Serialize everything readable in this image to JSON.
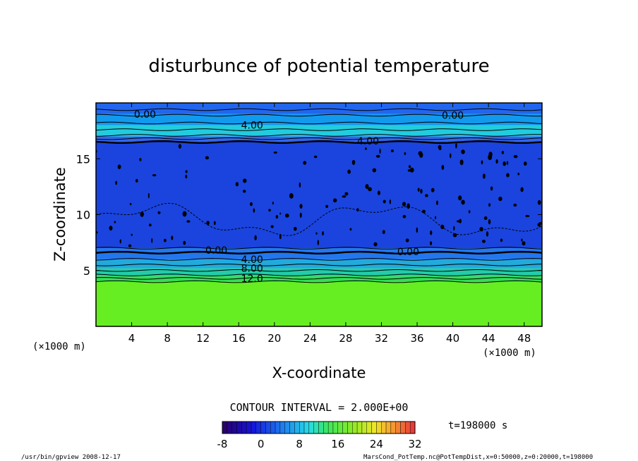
{
  "chart_data": {
    "type": "heatmap",
    "title": "disturbunce of potential temperature",
    "xlabel": "X-coordinate",
    "ylabel": "Z-coordinate",
    "x_unit": "(×1000 m)",
    "z_unit": "(×1000 m)",
    "xlim": [
      0,
      50
    ],
    "ylim": [
      0,
      20
    ],
    "x_ticks": [
      4,
      8,
      12,
      16,
      20,
      24,
      28,
      32,
      36,
      40,
      44,
      48
    ],
    "y_ticks": [
      5,
      10,
      15
    ],
    "contour_interval_label": "CONTOUR INTERVAL = 2.000E+00",
    "time_label": "t=198000 s",
    "colorbar": {
      "min": -8,
      "max": 32,
      "ticks": [
        -8,
        0,
        8,
        16,
        24,
        32
      ]
    },
    "contour_labels": [
      {
        "text": "0.00",
        "x": 5.5,
        "z": 19.0
      },
      {
        "text": "4.00",
        "x": 17.5,
        "z": 18.0
      },
      {
        "text": "0.00",
        "x": 40.0,
        "z": 18.9
      },
      {
        "text": "4.00",
        "x": 30.5,
        "z": 16.6
      },
      {
        "text": "0.00",
        "x": 13.5,
        "z": 6.8
      },
      {
        "text": "0.00",
        "x": 35.0,
        "z": 6.7
      },
      {
        "text": "4.00",
        "x": 17.5,
        "z": 6.0
      },
      {
        "text": "8.00",
        "x": 17.5,
        "z": 5.2
      },
      {
        "text": "12.0",
        "x": 17.5,
        "z": 4.3
      }
    ],
    "bands": [
      {
        "z_from": 0,
        "z_to": 4.0,
        "value": 12,
        "color": "#66ee22"
      },
      {
        "z_from": 4.0,
        "z_to": 4.5,
        "value": 10,
        "color": "#33dd55"
      },
      {
        "z_from": 4.5,
        "z_to": 5.2,
        "value": 8,
        "color": "#22ccaa"
      },
      {
        "z_from": 5.2,
        "z_to": 6.0,
        "value": 4,
        "color": "#22aadd"
      },
      {
        "z_from": 6.0,
        "z_to": 7.0,
        "value": 0,
        "color": "#2277ee"
      },
      {
        "z_from": 7.0,
        "z_to": 16.5,
        "value": -4,
        "color": "#1a44dd"
      },
      {
        "z_from": 16.5,
        "z_to": 17.0,
        "value": 0,
        "color": "#3366ee"
      },
      {
        "z_from": 17.0,
        "z_to": 18.0,
        "value": 4,
        "color": "#22ccdd"
      },
      {
        "z_from": 18.0,
        "z_to": 19.0,
        "value": 2,
        "color": "#1199ee"
      },
      {
        "z_from": 19.0,
        "z_to": 20.0,
        "value": 0,
        "color": "#2266ee"
      }
    ]
  },
  "footer": {
    "left": "/usr/bin/gpview   2008-12-17",
    "right": "MarsCond_PotTemp.nc@PotTempDist,x=0:50000,z=0:20000,t=198000"
  }
}
